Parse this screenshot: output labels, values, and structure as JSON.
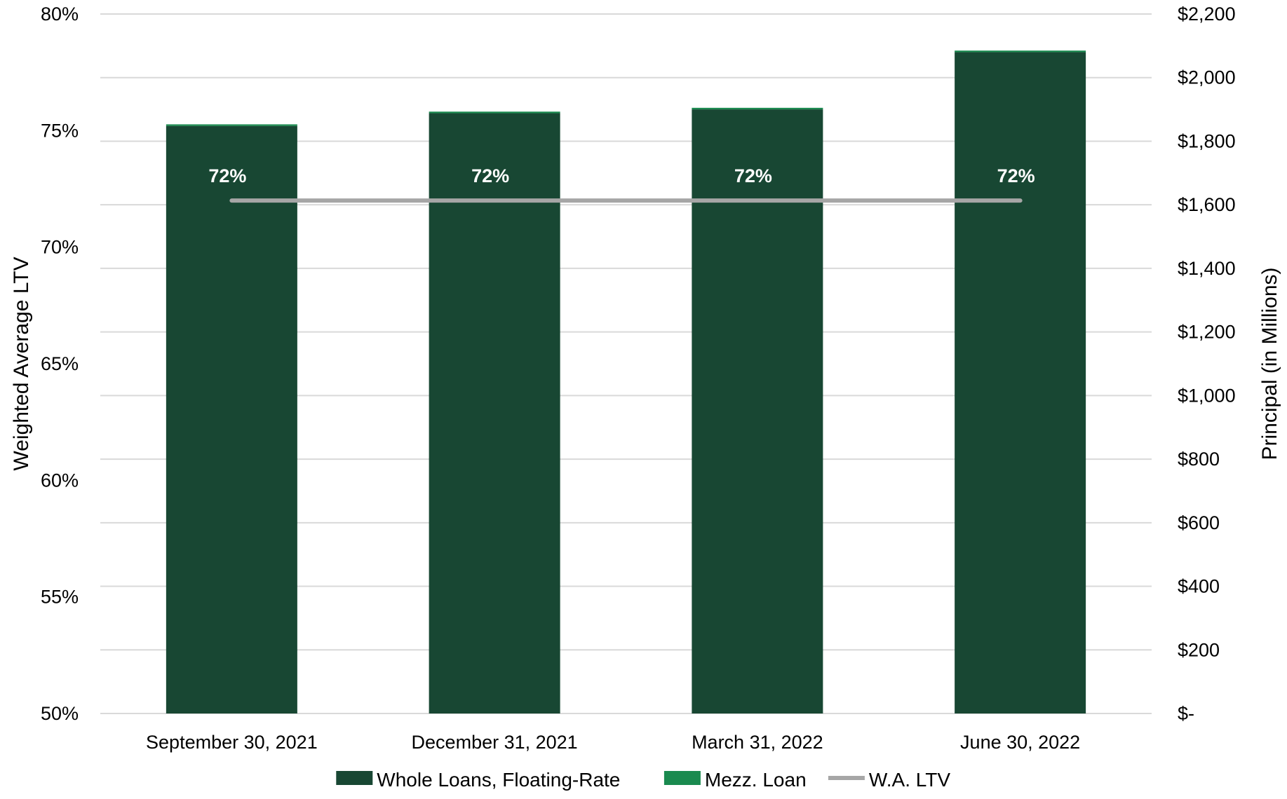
{
  "chart_data": {
    "type": "bar",
    "categories": [
      "September 30, 2021",
      "December 31, 2021",
      "March 31, 2022",
      "June 30, 2022"
    ],
    "series": [
      {
        "name": "Whole Loans, Floating-Rate",
        "type": "bar",
        "axis": "right",
        "stack": "principal",
        "color": "#184733",
        "values": [
          1848,
          1888,
          1900,
          2080
        ]
      },
      {
        "name": "Mezz. Loan",
        "type": "bar",
        "axis": "right",
        "stack": "principal",
        "color": "#1a8a4f",
        "values": [
          5,
          5,
          5,
          5
        ]
      },
      {
        "name": "W.A. LTV",
        "type": "line",
        "axis": "left",
        "color": "#a6a6a6",
        "values": [
          72,
          72,
          72,
          72
        ],
        "labels": [
          "72%",
          "72%",
          "72%",
          "72%"
        ]
      }
    ],
    "ylabel": "Weighted Average LTV",
    "ylabel_right": "Principal (in Millions)",
    "ylim": [
      50,
      80
    ],
    "ylim_right": [
      0,
      2200
    ],
    "yticks_left": [
      "50%",
      "55%",
      "60%",
      "65%",
      "70%",
      "75%",
      "80%"
    ],
    "yticks_right": [
      "$-",
      "$200",
      "$400",
      "$600",
      "$800",
      "$1,000",
      "$1,200",
      "$1,400",
      "$1,600",
      "$1,800",
      "$2,000",
      "$2,200"
    ],
    "grid": true,
    "legend_position": "bottom"
  }
}
